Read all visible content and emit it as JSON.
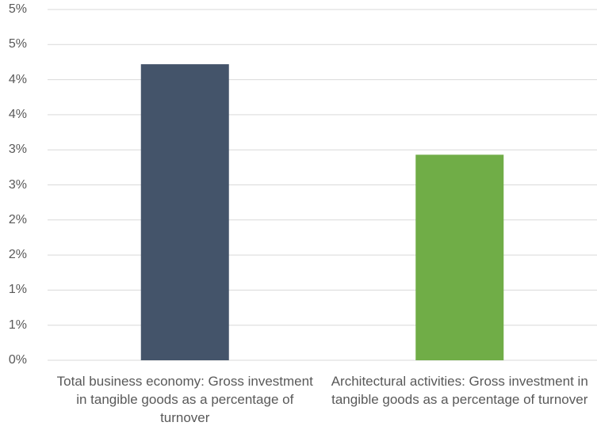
{
  "chart_data": {
    "type": "bar",
    "categories": [
      "Total business economy: Gross investment in tangible goods as a percentage of turnover",
      "Architectural activities: Gross investment in tangible goods as a percentage of turnover"
    ],
    "values": [
      4.22,
      2.93
    ],
    "bar_colors": [
      "#44546a",
      "#70ad47"
    ],
    "ylim": [
      0,
      5
    ],
    "yticks": [
      0,
      0.5,
      1,
      1.5,
      2,
      2.5,
      3,
      3.5,
      4,
      4.5,
      5
    ],
    "ytick_labels": [
      "0%",
      "1%",
      "1%",
      "2%",
      "2%",
      "3%",
      "3%",
      "4%",
      "4%",
      "5%",
      "5%"
    ],
    "grid": true,
    "title": "",
    "xlabel": "",
    "ylabel": ""
  }
}
